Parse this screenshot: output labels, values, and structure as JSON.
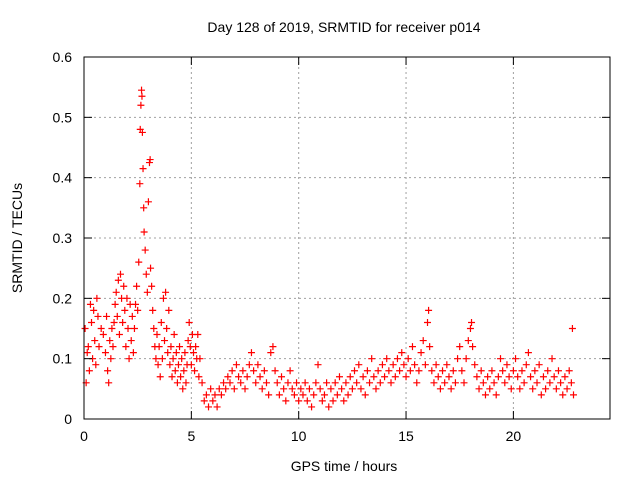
{
  "chart_data": {
    "type": "scatter",
    "title": "Day 128 of 2019, SRMTID for receiver p014",
    "xlabel": "GPS time / hours",
    "ylabel": "SRMTID / TECUs",
    "xlim": [
      0,
      24.5
    ],
    "ylim": [
      0,
      0.6
    ],
    "x_ticks": [
      0,
      5,
      10,
      15,
      20
    ],
    "x_tick_labels": [
      "0",
      "5",
      "10",
      "15",
      "20"
    ],
    "y_ticks": [
      0,
      0.1,
      0.2,
      0.3,
      0.4,
      0.5,
      0.6
    ],
    "y_tick_labels": [
      "0",
      "0.1",
      "0.2",
      "0.3",
      "0.4",
      "0.5",
      "0.6"
    ],
    "grid": true,
    "marker": "plus",
    "color": "#ff0000",
    "series": [
      {
        "name": "SRMTID",
        "points": [
          [
            0.05,
            0.15
          ],
          [
            0.1,
            0.06
          ],
          [
            0.15,
            0.11
          ],
          [
            0.2,
            0.12
          ],
          [
            0.25,
            0.08
          ],
          [
            0.3,
            0.19
          ],
          [
            0.35,
            0.16
          ],
          [
            0.4,
            0.1
          ],
          [
            0.45,
            0.18
          ],
          [
            0.5,
            0.13
          ],
          [
            0.55,
            0.09
          ],
          [
            0.6,
            0.2
          ],
          [
            0.65,
            0.17
          ],
          [
            0.7,
            0.12
          ],
          [
            0.8,
            0.15
          ],
          [
            0.9,
            0.14
          ],
          [
            1.0,
            0.11
          ],
          [
            1.05,
            0.17
          ],
          [
            1.1,
            0.08
          ],
          [
            1.15,
            0.06
          ],
          [
            1.2,
            0.13
          ],
          [
            1.25,
            0.1
          ],
          [
            1.3,
            0.15
          ],
          [
            1.35,
            0.12
          ],
          [
            1.4,
            0.16
          ],
          [
            1.45,
            0.19
          ],
          [
            1.5,
            0.21
          ],
          [
            1.55,
            0.17
          ],
          [
            1.6,
            0.23
          ],
          [
            1.65,
            0.14
          ],
          [
            1.7,
            0.24
          ],
          [
            1.75,
            0.2
          ],
          [
            1.8,
            0.16
          ],
          [
            1.85,
            0.22
          ],
          [
            1.9,
            0.18
          ],
          [
            1.95,
            0.12
          ],
          [
            2.0,
            0.2
          ],
          [
            2.05,
            0.15
          ],
          [
            2.1,
            0.1
          ],
          [
            2.15,
            0.19
          ],
          [
            2.2,
            0.13
          ],
          [
            2.25,
            0.17
          ],
          [
            2.3,
            0.11
          ],
          [
            2.35,
            0.15
          ],
          [
            2.4,
            0.19
          ],
          [
            2.45,
            0.22
          ],
          [
            2.5,
            0.18
          ],
          [
            2.55,
            0.26
          ],
          [
            2.6,
            0.39
          ],
          [
            2.62,
            0.48
          ],
          [
            2.65,
            0.52
          ],
          [
            2.68,
            0.545
          ],
          [
            2.7,
            0.535
          ],
          [
            2.72,
            0.475
          ],
          [
            2.75,
            0.415
          ],
          [
            2.78,
            0.35
          ],
          [
            2.8,
            0.31
          ],
          [
            2.85,
            0.28
          ],
          [
            2.9,
            0.24
          ],
          [
            2.95,
            0.21
          ],
          [
            3.0,
            0.36
          ],
          [
            3.05,
            0.425
          ],
          [
            3.08,
            0.43
          ],
          [
            3.1,
            0.25
          ],
          [
            3.15,
            0.22
          ],
          [
            3.2,
            0.18
          ],
          [
            3.25,
            0.15
          ],
          [
            3.3,
            0.12
          ],
          [
            3.35,
            0.1
          ],
          [
            3.4,
            0.14
          ],
          [
            3.45,
            0.09
          ],
          [
            3.5,
            0.12
          ],
          [
            3.55,
            0.07
          ],
          [
            3.6,
            0.16
          ],
          [
            3.65,
            0.1
          ],
          [
            3.7,
            0.2
          ],
          [
            3.75,
            0.13
          ],
          [
            3.8,
            0.21
          ],
          [
            3.85,
            0.15
          ],
          [
            3.9,
            0.11
          ],
          [
            3.95,
            0.18
          ],
          [
            4.0,
            0.09
          ],
          [
            4.05,
            0.12
          ],
          [
            4.1,
            0.07
          ],
          [
            4.15,
            0.1
          ],
          [
            4.2,
            0.14
          ],
          [
            4.25,
            0.08
          ],
          [
            4.3,
            0.11
          ],
          [
            4.35,
            0.06
          ],
          [
            4.4,
            0.09
          ],
          [
            4.45,
            0.12
          ],
          [
            4.5,
            0.07
          ],
          [
            4.55,
            0.1
          ],
          [
            4.6,
            0.05
          ],
          [
            4.65,
            0.08
          ],
          [
            4.7,
            0.11
          ],
          [
            4.75,
            0.06
          ],
          [
            4.8,
            0.09
          ],
          [
            4.85,
            0.13
          ],
          [
            4.9,
            0.16
          ],
          [
            4.95,
            0.12
          ],
          [
            5.0,
            0.09
          ],
          [
            5.05,
            0.14
          ],
          [
            5.1,
            0.11
          ],
          [
            5.15,
            0.08
          ],
          [
            5.2,
            0.12
          ],
          [
            5.25,
            0.1
          ],
          [
            5.3,
            0.14
          ],
          [
            5.35,
            0.07
          ],
          [
            5.4,
            0.1
          ],
          [
            5.5,
            0.06
          ],
          [
            5.6,
            0.03
          ],
          [
            5.7,
            0.04
          ],
          [
            5.8,
            0.02
          ],
          [
            5.9,
            0.05
          ],
          [
            6.0,
            0.03
          ],
          [
            6.1,
            0.04
          ],
          [
            6.2,
            0.02
          ],
          [
            6.3,
            0.05
          ],
          [
            6.4,
            0.04
          ],
          [
            6.5,
            0.06
          ],
          [
            6.6,
            0.05
          ],
          [
            6.7,
            0.07
          ],
          [
            6.8,
            0.06
          ],
          [
            6.9,
            0.08
          ],
          [
            7.0,
            0.05
          ],
          [
            7.1,
            0.09
          ],
          [
            7.2,
            0.07
          ],
          [
            7.3,
            0.06
          ],
          [
            7.4,
            0.08
          ],
          [
            7.5,
            0.05
          ],
          [
            7.6,
            0.07
          ],
          [
            7.7,
            0.09
          ],
          [
            7.8,
            0.11
          ],
          [
            7.9,
            0.08
          ],
          [
            8.0,
            0.06
          ],
          [
            8.1,
            0.09
          ],
          [
            8.2,
            0.07
          ],
          [
            8.3,
            0.05
          ],
          [
            8.4,
            0.08
          ],
          [
            8.5,
            0.06
          ],
          [
            8.6,
            0.04
          ],
          [
            8.7,
            0.11
          ],
          [
            8.8,
            0.12
          ],
          [
            8.9,
            0.08
          ],
          [
            9.0,
            0.06
          ],
          [
            9.1,
            0.04
          ],
          [
            9.2,
            0.07
          ],
          [
            9.3,
            0.05
          ],
          [
            9.4,
            0.03
          ],
          [
            9.5,
            0.06
          ],
          [
            9.6,
            0.08
          ],
          [
            9.7,
            0.05
          ],
          [
            9.8,
            0.04
          ],
          [
            9.9,
            0.06
          ],
          [
            10.0,
            0.03
          ],
          [
            10.1,
            0.05
          ],
          [
            10.2,
            0.04
          ],
          [
            10.3,
            0.06
          ],
          [
            10.4,
            0.03
          ],
          [
            10.5,
            0.05
          ],
          [
            10.6,
            0.02
          ],
          [
            10.7,
            0.04
          ],
          [
            10.8,
            0.06
          ],
          [
            10.9,
            0.09
          ],
          [
            11.0,
            0.05
          ],
          [
            11.1,
            0.03
          ],
          [
            11.2,
            0.04
          ],
          [
            11.3,
            0.06
          ],
          [
            11.4,
            0.02
          ],
          [
            11.5,
            0.05
          ],
          [
            11.6,
            0.03
          ],
          [
            11.7,
            0.06
          ],
          [
            11.8,
            0.04
          ],
          [
            11.9,
            0.07
          ],
          [
            12.0,
            0.05
          ],
          [
            12.1,
            0.03
          ],
          [
            12.2,
            0.06
          ],
          [
            12.3,
            0.04
          ],
          [
            12.4,
            0.07
          ],
          [
            12.5,
            0.05
          ],
          [
            12.6,
            0.08
          ],
          [
            12.7,
            0.06
          ],
          [
            12.8,
            0.09
          ],
          [
            12.9,
            0.05
          ],
          [
            13.0,
            0.07
          ],
          [
            13.1,
            0.04
          ],
          [
            13.2,
            0.08
          ],
          [
            13.3,
            0.06
          ],
          [
            13.4,
            0.1
          ],
          [
            13.5,
            0.07
          ],
          [
            13.6,
            0.05
          ],
          [
            13.7,
            0.08
          ],
          [
            13.8,
            0.06
          ],
          [
            13.9,
            0.09
          ],
          [
            14.0,
            0.07
          ],
          [
            14.1,
            0.1
          ],
          [
            14.2,
            0.08
          ],
          [
            14.3,
            0.06
          ],
          [
            14.4,
            0.09
          ],
          [
            14.5,
            0.07
          ],
          [
            14.6,
            0.1
          ],
          [
            14.7,
            0.08
          ],
          [
            14.8,
            0.11
          ],
          [
            14.9,
            0.09
          ],
          [
            15.0,
            0.07
          ],
          [
            15.1,
            0.1
          ],
          [
            15.2,
            0.08
          ],
          [
            15.3,
            0.12
          ],
          [
            15.4,
            0.09
          ],
          [
            15.5,
            0.06
          ],
          [
            15.6,
            0.08
          ],
          [
            15.7,
            0.11
          ],
          [
            15.8,
            0.13
          ],
          [
            15.9,
            0.09
          ],
          [
            16.0,
            0.16
          ],
          [
            16.05,
            0.18
          ],
          [
            16.1,
            0.12
          ],
          [
            16.2,
            0.08
          ],
          [
            16.3,
            0.06
          ],
          [
            16.4,
            0.09
          ],
          [
            16.5,
            0.07
          ],
          [
            16.6,
            0.05
          ],
          [
            16.7,
            0.08
          ],
          [
            16.8,
            0.06
          ],
          [
            16.9,
            0.09
          ],
          [
            17.0,
            0.07
          ],
          [
            17.1,
            0.05
          ],
          [
            17.2,
            0.08
          ],
          [
            17.3,
            0.06
          ],
          [
            17.4,
            0.1
          ],
          [
            17.5,
            0.12
          ],
          [
            17.6,
            0.08
          ],
          [
            17.7,
            0.06
          ],
          [
            17.8,
            0.1
          ],
          [
            17.9,
            0.13
          ],
          [
            18.0,
            0.15
          ],
          [
            18.05,
            0.16
          ],
          [
            18.1,
            0.12
          ],
          [
            18.2,
            0.09
          ],
          [
            18.3,
            0.07
          ],
          [
            18.4,
            0.05
          ],
          [
            18.5,
            0.08
          ],
          [
            18.6,
            0.06
          ],
          [
            18.7,
            0.04
          ],
          [
            18.8,
            0.07
          ],
          [
            18.9,
            0.05
          ],
          [
            19.0,
            0.08
          ],
          [
            19.1,
            0.06
          ],
          [
            19.2,
            0.04
          ],
          [
            19.3,
            0.07
          ],
          [
            19.4,
            0.1
          ],
          [
            19.5,
            0.08
          ],
          [
            19.6,
            0.06
          ],
          [
            19.7,
            0.09
          ],
          [
            19.8,
            0.07
          ],
          [
            19.9,
            0.05
          ],
          [
            20.0,
            0.08
          ],
          [
            20.1,
            0.1
          ],
          [
            20.2,
            0.07
          ],
          [
            20.3,
            0.05
          ],
          [
            20.4,
            0.08
          ],
          [
            20.5,
            0.06
          ],
          [
            20.6,
            0.09
          ],
          [
            20.7,
            0.11
          ],
          [
            20.8,
            0.07
          ],
          [
            20.9,
            0.05
          ],
          [
            21.0,
            0.08
          ],
          [
            21.1,
            0.06
          ],
          [
            21.2,
            0.09
          ],
          [
            21.3,
            0.04
          ],
          [
            21.4,
            0.07
          ],
          [
            21.5,
            0.05
          ],
          [
            21.6,
            0.08
          ],
          [
            21.7,
            0.06
          ],
          [
            21.8,
            0.1
          ],
          [
            21.9,
            0.07
          ],
          [
            22.0,
            0.05
          ],
          [
            22.1,
            0.08
          ],
          [
            22.2,
            0.06
          ],
          [
            22.3,
            0.04
          ],
          [
            22.4,
            0.07
          ],
          [
            22.5,
            0.05
          ],
          [
            22.6,
            0.08
          ],
          [
            22.7,
            0.06
          ],
          [
            22.75,
            0.15
          ],
          [
            22.8,
            0.04
          ]
        ]
      }
    ]
  }
}
